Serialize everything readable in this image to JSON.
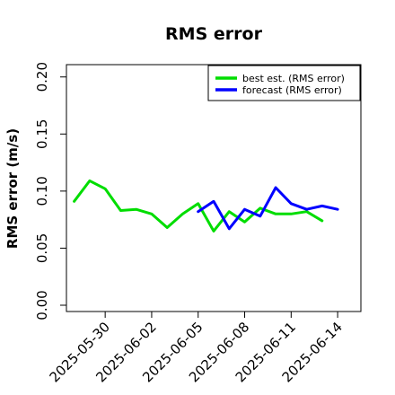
{
  "chart_data": {
    "type": "line",
    "title": "RMS error",
    "xlabel": "",
    "ylabel": "RMS error (m/s)",
    "ylim": [
      0.0,
      0.21
    ],
    "y_ticks": [
      "0.00",
      "0.05",
      "0.10",
      "0.15",
      "0.20"
    ],
    "y_tick_values": [
      0.0,
      0.05,
      0.1,
      0.15,
      0.2
    ],
    "x_ticks": [
      "2025-05-30",
      "2025-06-02",
      "2025-06-05",
      "2025-06-08",
      "2025-06-11",
      "2025-06-14"
    ],
    "x_tick_colors": [
      "#000000",
      "#000000",
      "#228B22",
      "#000000",
      "#000000",
      "#000000"
    ],
    "xlim": [
      "2025-05-27T12:00",
      "2025-06-15T12:00"
    ],
    "legend_position": "top-right",
    "grid": false,
    "series": [
      {
        "name": "best est. (RMS error)",
        "color": "#00dd00",
        "x": [
          "2025-05-28",
          "2025-05-29",
          "2025-05-30",
          "2025-05-31",
          "2025-06-01",
          "2025-06-02",
          "2025-06-03",
          "2025-06-04",
          "2025-06-05",
          "2025-06-06",
          "2025-06-07",
          "2025-06-08",
          "2025-06-09",
          "2025-06-10",
          "2025-06-11",
          "2025-06-12",
          "2025-06-13",
          "2025-06-14"
        ],
        "values": [
          0.091,
          0.109,
          0.102,
          0.083,
          0.084,
          0.08,
          0.068,
          0.08,
          0.089,
          0.065,
          0.082,
          0.073,
          0.085,
          0.08,
          0.08,
          0.082,
          0.074,
          null
        ]
      },
      {
        "name": "forecast (RMS error)",
        "color": "#0000ff",
        "x": [
          "2025-06-05",
          "2025-06-06",
          "2025-06-07",
          "2025-06-08",
          "2025-06-09",
          "2025-06-10",
          "2025-06-11",
          "2025-06-12",
          "2025-06-13",
          "2025-06-14"
        ],
        "values": [
          0.082,
          0.091,
          0.067,
          0.084,
          0.078,
          0.103,
          0.089,
          0.084,
          0.087,
          0.084
        ]
      }
    ]
  }
}
